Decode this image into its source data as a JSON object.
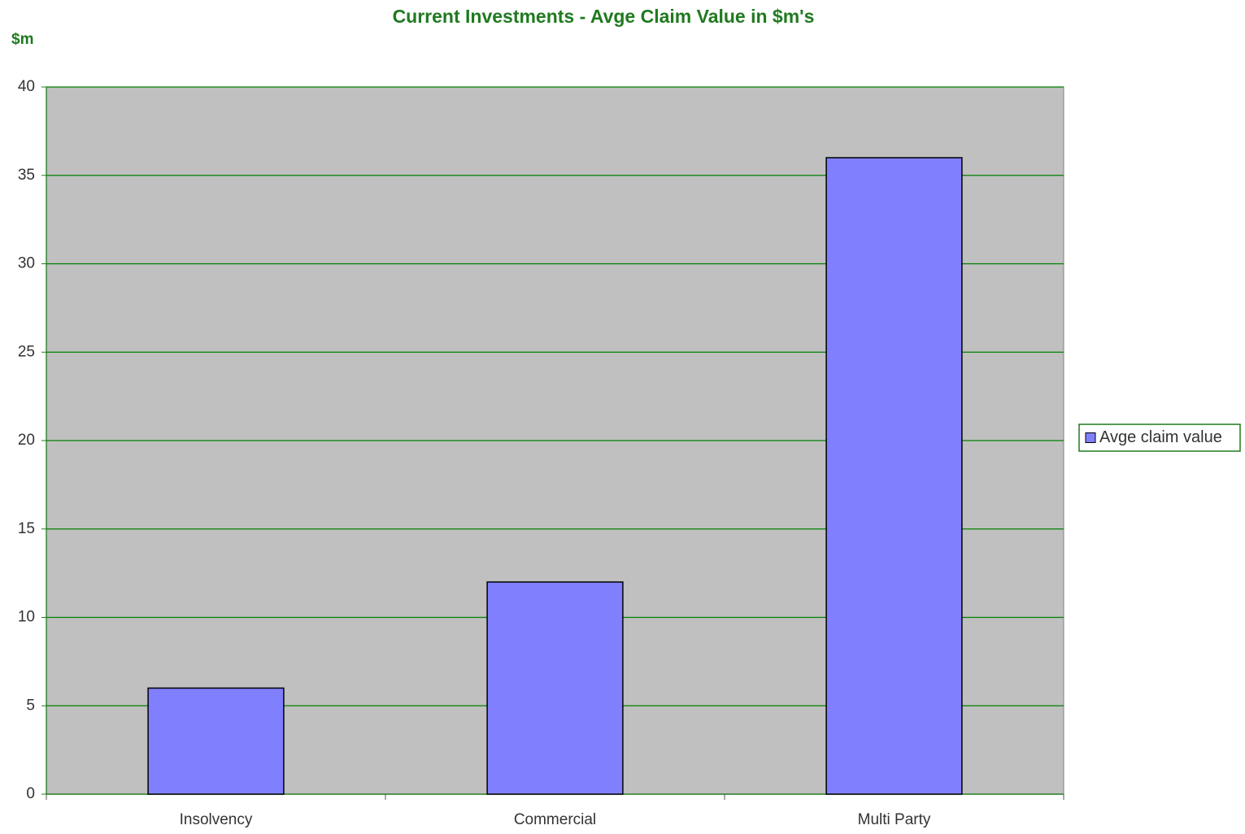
{
  "chart_data": {
    "type": "bar",
    "title": "Current Investments - Avge Claim Value in $m's",
    "y_label": "$m",
    "categories": [
      "Insolvency",
      "Commercial",
      "Multi Party"
    ],
    "series": [
      {
        "name": "Avge claim value",
        "color": "#8080ff",
        "values": [
          6,
          12,
          36
        ]
      }
    ],
    "ylim": [
      0,
      40
    ],
    "yticks": [
      0,
      5,
      10,
      15,
      20,
      25,
      30,
      35,
      40
    ],
    "grid": true,
    "legend": "right"
  }
}
